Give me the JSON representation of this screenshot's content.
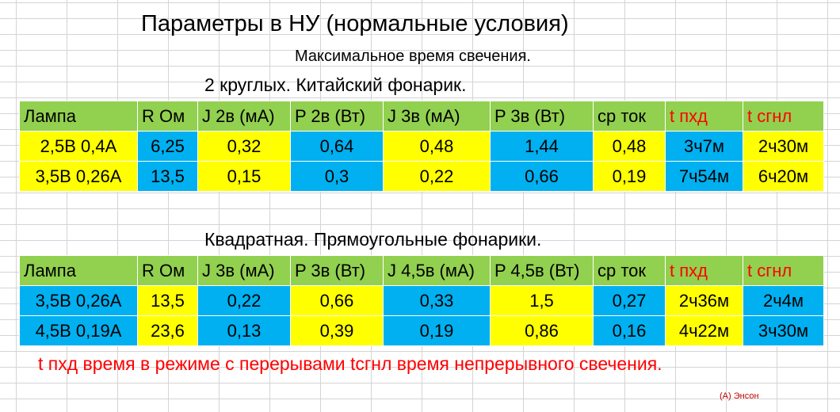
{
  "title": "Параметры в НУ (нормальные условия)",
  "subtitle": "Максимальное время свечения.",
  "section1": {
    "caption": "2 круглых. Китайский фонарик.",
    "headers": [
      "Лампа",
      "R Ом",
      "J 2в (мА)",
      "P  2в (Вт)",
      "J 3в (мА)",
      "P 3в (Вт)",
      "ср ток",
      "t пхд",
      "t сгнл"
    ],
    "rows": [
      [
        "2,5В 0,4А",
        "6,25",
        "0,32",
        "0,64",
        "0,48",
        "1,44",
        "0,48",
        "3ч7м",
        "2ч30м"
      ],
      [
        "3,5В 0,26А",
        "13,5",
        "0,15",
        "0,3",
        "0,22",
        "0,66",
        "0,19",
        "7ч54м",
        "6ч20м"
      ]
    ]
  },
  "section2": {
    "caption": "Квадратная. Прямоугольные фонарики.",
    "headers": [
      "Лампа",
      "R Ом",
      "J 3в (мА)",
      "P  3в (Вт)",
      "J 4,5в (мА)",
      "P 4,5в (Вт)",
      "ср ток",
      "t пхд",
      "t сгнл"
    ],
    "rows": [
      [
        "3,5В 0,26А",
        "13,5",
        "0,22",
        "0,66",
        "0,33",
        "1,5",
        "0,27",
        "2ч36м",
        "2ч4м"
      ],
      [
        "4,5В 0,19А",
        "23,6",
        "0,13",
        "0,39",
        "0,19",
        "0,86",
        "0,16",
        "4ч22м",
        "3ч30м"
      ]
    ]
  },
  "footnote": "t пхд время в режиме с перерывами  tсгнл время непрерывного свечения.",
  "credit": "(А) Энсон",
  "colors": {
    "header_green": "#92d050",
    "yellow": "#ffff00",
    "blue": "#00b0f0",
    "red_text": "#ff0000"
  }
}
